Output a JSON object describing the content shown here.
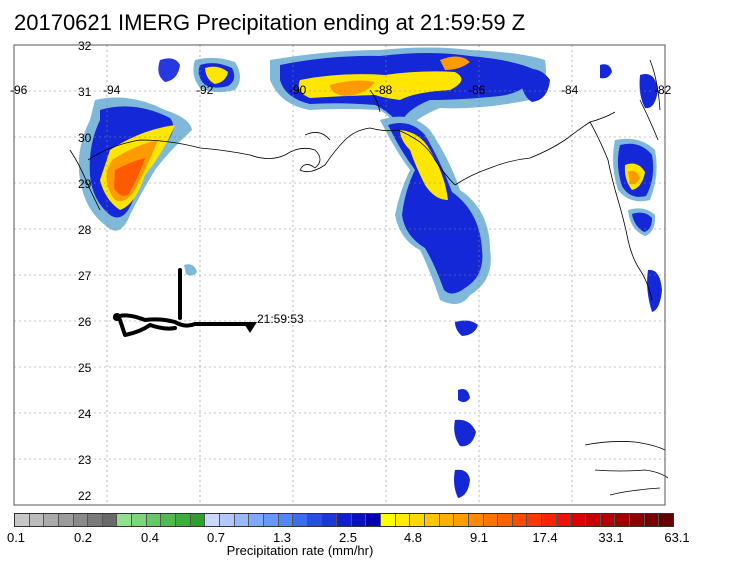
{
  "title": "20170621 IMERG Precipitation ending at 21:59:59 Z",
  "map": {
    "lon_range": [
      -96,
      -82
    ],
    "lat_range": [
      22,
      32
    ],
    "lat_labels": [
      "32",
      "31",
      "30",
      "29",
      "28",
      "27",
      "26",
      "25",
      "24",
      "23",
      "22"
    ],
    "lon_labels": [
      "-96",
      "-94",
      "-92",
      "-90",
      "-88",
      "-86",
      "-84",
      "-82"
    ],
    "track_end_time": "21:59:53"
  },
  "colorbar": {
    "title": "Precipitation rate (mm/hr)",
    "tick_labels": [
      "0.1",
      "0.2",
      "0.4",
      "0.7",
      "1.3",
      "2.5",
      "4.8",
      "9.1",
      "17.4",
      "33.1",
      "63.1"
    ],
    "colors": [
      "#c8c8c8",
      "#bbbbbb",
      "#aaaaaa",
      "#9a9a9a",
      "#8a8a8a",
      "#7a7a7a",
      "#6a6a6a",
      "#90e090",
      "#7ad67a",
      "#64c864",
      "#50bb50",
      "#3cae3c",
      "#2ea02e",
      "#c8d8ff",
      "#b0c8ff",
      "#98b8ff",
      "#80a8ff",
      "#6898ff",
      "#5088f8",
      "#3c6cf0",
      "#2850e0",
      "#1c38d8",
      "#1020d0",
      "#0810c0",
      "#0000b0",
      "#ffff00",
      "#ffec00",
      "#ffd800",
      "#ffc400",
      "#ffb000",
      "#ff9c00",
      "#ff8800",
      "#ff7400",
      "#ff6000",
      "#ff4c00",
      "#ff3800",
      "#ff2400",
      "#f01000",
      "#dc0000",
      "#c80000",
      "#b40000",
      "#a00000",
      "#8c0000",
      "#780000",
      "#640000"
    ]
  }
}
